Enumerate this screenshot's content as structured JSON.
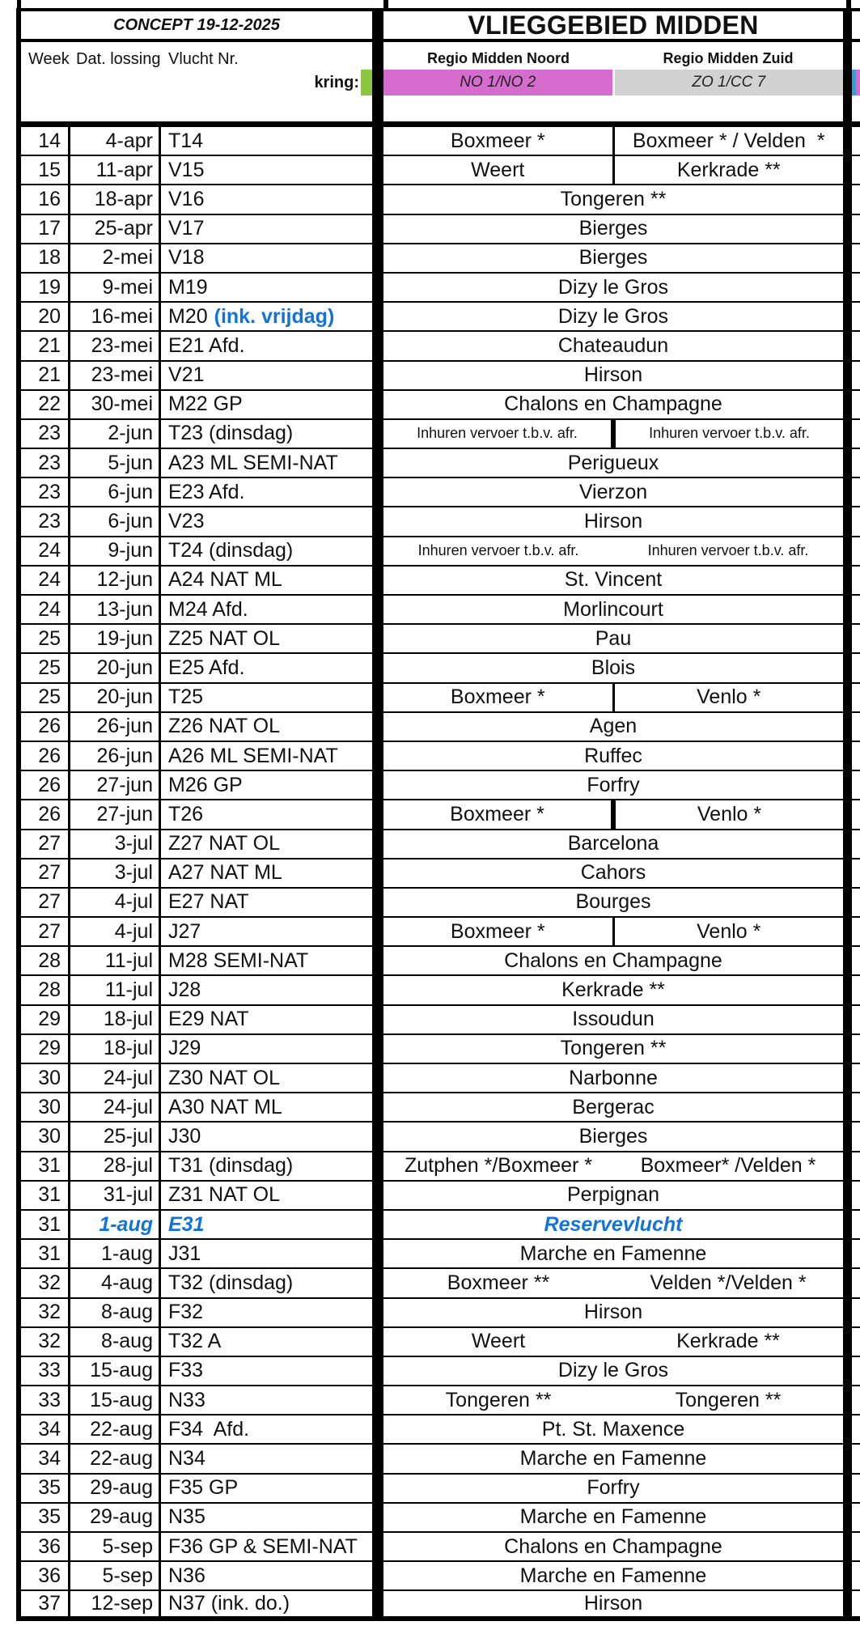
{
  "header": {
    "concept": "CONCEPT 19-12-2025",
    "title": "VLIEGGEBIED MIDDEN",
    "col_week": "Week",
    "col_date": "Dat. lossing",
    "col_flight": "Vlucht Nr.",
    "kring_label": "kring:",
    "region_noord": {
      "label": "Regio Midden Noord",
      "kring": "NO 1/NO 2"
    },
    "region_zuid": {
      "label": "Regio Midden Zuid",
      "kring": "ZO 1/CC 7"
    }
  },
  "colors": {
    "accent_blue": "#1473d6",
    "noord_pink": "#d76ccf",
    "zuid_gray": "#d2d2d2",
    "kring_green": "#8dc63f",
    "edge_blue": "#29a3dd",
    "edge_pink": "#d76ccf"
  },
  "rows": [
    {
      "week": "14",
      "date": "4-apr",
      "flight": "T14",
      "split": "thin",
      "locations": [
        "Boxmeer *",
        "Boxmeer * / Velden  *"
      ]
    },
    {
      "week": "15",
      "date": "11-apr",
      "flight": "V15",
      "split": "thin",
      "locations": [
        "Weert",
        "Kerkrade **"
      ]
    },
    {
      "week": "16",
      "date": "18-apr",
      "flight": "V16",
      "split": "none",
      "locations": [
        "Tongeren **"
      ]
    },
    {
      "week": "17",
      "date": "25-apr",
      "flight": "V17",
      "split": "none",
      "locations": [
        "Bierges"
      ]
    },
    {
      "week": "18",
      "date": "2-mei",
      "flight": "V18",
      "split": "none",
      "locations": [
        "Bierges"
      ]
    },
    {
      "week": "19",
      "date": "9-mei",
      "flight": "M19",
      "split": "none",
      "locations": [
        "Dizy le Gros"
      ]
    },
    {
      "week": "20",
      "date": "16-mei",
      "flight": "M20",
      "note": "(ink. vrijdag)",
      "split": "none",
      "locations": [
        "Dizy le Gros"
      ]
    },
    {
      "week": "21",
      "date": "23-mei",
      "flight": "E21 Afd.",
      "split": "none",
      "locations": [
        "Chateaudun"
      ]
    },
    {
      "week": "21",
      "date": "23-mei",
      "flight": "V21",
      "split": "none",
      "locations": [
        "Hirson"
      ]
    },
    {
      "week": "22",
      "date": "30-mei",
      "flight": "M22 GP",
      "split": "none",
      "locations": [
        "Chalons en Champagne"
      ]
    },
    {
      "week": "23",
      "date": "2-jun",
      "flight": "T23 (dinsdag)",
      "split": "thick",
      "small": true,
      "locations": [
        "Inhuren vervoer t.b.v. afr.",
        "Inhuren vervoer t.b.v. afr."
      ]
    },
    {
      "week": "23",
      "date": "5-jun",
      "flight": "A23 ML SEMI-NAT",
      "split": "none",
      "locations": [
        "Perigueux"
      ]
    },
    {
      "week": "23",
      "date": "6-jun",
      "flight": "E23 Afd.",
      "split": "none",
      "locations": [
        "Vierzon"
      ]
    },
    {
      "week": "23",
      "date": "6-jun",
      "flight": "V23",
      "split": "none",
      "locations": [
        "Hirson"
      ]
    },
    {
      "week": "24",
      "date": "9-jun",
      "flight": "T24 (dinsdag)",
      "split": "gap",
      "small": true,
      "locations": [
        "Inhuren vervoer t.b.v. afr.",
        "Inhuren vervoer t.b.v. afr."
      ]
    },
    {
      "week": "24",
      "date": "12-jun",
      "flight": "A24 NAT ML",
      "split": "none",
      "locations": [
        "St. Vincent"
      ]
    },
    {
      "week": "24",
      "date": "13-jun",
      "flight": "M24 Afd.",
      "split": "none",
      "locations": [
        "Morlincourt"
      ]
    },
    {
      "week": "25",
      "date": "19-jun",
      "flight": "Z25 NAT OL",
      "split": "none",
      "locations": [
        "Pau"
      ]
    },
    {
      "week": "25",
      "date": "20-jun",
      "flight": "E25 Afd.",
      "split": "none",
      "locations": [
        "Blois"
      ]
    },
    {
      "week": "25",
      "date": "20-jun",
      "flight": "T25",
      "split": "thin",
      "locations": [
        "Boxmeer *",
        "Venlo *"
      ]
    },
    {
      "week": "26",
      "date": "26-jun",
      "flight": "Z26 NAT OL",
      "split": "none",
      "locations": [
        "Agen"
      ]
    },
    {
      "week": "26",
      "date": "26-jun",
      "flight": "A26 ML SEMI-NAT",
      "split": "none",
      "locations": [
        "Ruffec"
      ]
    },
    {
      "week": "26",
      "date": "27-jun",
      "flight": "M26 GP",
      "split": "none",
      "locations": [
        "Forfry"
      ]
    },
    {
      "week": "26",
      "date": "27-jun",
      "flight": "T26",
      "split": "thick",
      "locations": [
        "Boxmeer *",
        "Venlo *"
      ]
    },
    {
      "week": "27",
      "date": "3-jul",
      "flight": "Z27 NAT OL",
      "split": "none",
      "locations": [
        "Barcelona"
      ]
    },
    {
      "week": "27",
      "date": "3-jul",
      "flight": "A27 NAT ML",
      "split": "none",
      "locations": [
        "Cahors"
      ]
    },
    {
      "week": "27",
      "date": "4-jul",
      "flight": "E27 NAT",
      "split": "none",
      "locations": [
        "Bourges"
      ]
    },
    {
      "week": "27",
      "date": "4-jul",
      "flight": "J27",
      "split": "thin",
      "locations": [
        "Boxmeer *",
        "Venlo *"
      ]
    },
    {
      "week": "28",
      "date": "11-jul",
      "flight": "M28 SEMI-NAT",
      "split": "none",
      "locations": [
        "Chalons en Champagne"
      ]
    },
    {
      "week": "28",
      "date": "11-jul",
      "flight": "J28",
      "split": "none",
      "locations": [
        "Kerkrade **"
      ]
    },
    {
      "week": "29",
      "date": "18-jul",
      "flight": "E29 NAT",
      "split": "none",
      "locations": [
        "Issoudun"
      ]
    },
    {
      "week": "29",
      "date": "18-jul",
      "flight": "J29",
      "split": "none",
      "locations": [
        "Tongeren **"
      ]
    },
    {
      "week": "30",
      "date": "24-jul",
      "flight": "Z30 NAT OL",
      "split": "none",
      "locations": [
        "Narbonne"
      ]
    },
    {
      "week": "30",
      "date": "24-jul",
      "flight": "A30 NAT ML",
      "split": "none",
      "locations": [
        "Bergerac"
      ]
    },
    {
      "week": "30",
      "date": "25-jul",
      "flight": "J30",
      "split": "none",
      "locations": [
        "Bierges"
      ]
    },
    {
      "week": "31",
      "date": "28-jul",
      "flight": "T31 (dinsdag)",
      "split": "gap",
      "locations": [
        "Zutphen */Boxmeer *",
        "Boxmeer* /Velden *"
      ]
    },
    {
      "week": "31",
      "date": "31-jul",
      "flight": "Z31 NAT OL",
      "split": "none",
      "locations": [
        "Perpignan"
      ]
    },
    {
      "week": "31",
      "date": "1-aug",
      "flight": "E31",
      "split": "none",
      "blue": true,
      "locations": [
        "Reservevlucht"
      ]
    },
    {
      "week": "31",
      "date": "1-aug",
      "flight": "J31",
      "split": "none",
      "locations": [
        "Marche en Famenne"
      ]
    },
    {
      "week": "32",
      "date": "4-aug",
      "flight": "T32 (dinsdag)",
      "split": "gap",
      "locations": [
        "Boxmeer **",
        "Velden */Velden *"
      ]
    },
    {
      "week": "32",
      "date": "8-aug",
      "flight": "F32",
      "split": "none",
      "locations": [
        "Hirson"
      ]
    },
    {
      "week": "32",
      "date": "8-aug",
      "flight": "T32 A",
      "split": "gap",
      "locations": [
        "Weert",
        "Kerkrade **"
      ]
    },
    {
      "week": "33",
      "date": "15-aug",
      "flight": "F33",
      "split": "none",
      "locations": [
        "Dizy le Gros"
      ]
    },
    {
      "week": "33",
      "date": "15-aug",
      "flight": "N33",
      "split": "gap",
      "locations": [
        "Tongeren **",
        "Tongeren **"
      ]
    },
    {
      "week": "34",
      "date": "22-aug",
      "flight": "F34  Afd.",
      "split": "none",
      "locations": [
        "Pt. St. Maxence"
      ]
    },
    {
      "week": "34",
      "date": "22-aug",
      "flight": "N34",
      "split": "none",
      "locations": [
        "Marche en Famenne"
      ]
    },
    {
      "week": "35",
      "date": "29-aug",
      "flight": "F35 GP",
      "split": "none",
      "locations": [
        "Forfry"
      ]
    },
    {
      "week": "35",
      "date": "29-aug",
      "flight": "N35",
      "split": "none",
      "locations": [
        "Marche en Famenne"
      ]
    },
    {
      "week": "36",
      "date": "5-sep",
      "flight": "F36 GP & SEMI-NAT",
      "split": "none",
      "locations": [
        "Chalons en Champagne"
      ]
    },
    {
      "week": "36",
      "date": "5-sep",
      "flight": "N36",
      "split": "none",
      "locations": [
        "Marche en Famenne"
      ]
    },
    {
      "week": "37",
      "date": "12-sep",
      "flight": "N37 (ink. do.)",
      "split": "none",
      "locations": [
        "Hirson"
      ]
    }
  ]
}
